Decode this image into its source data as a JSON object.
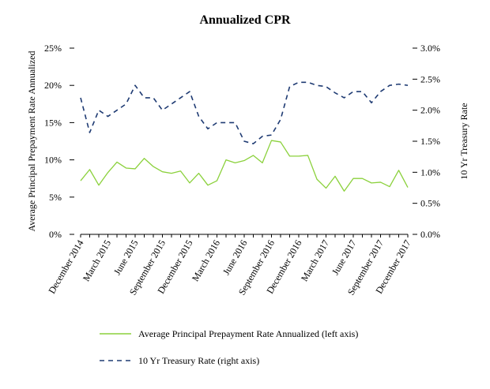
{
  "chart_data": {
    "type": "line",
    "title": "Annualized CPR",
    "ylabel_left": "Average Principal Prepayment Rate Annualized",
    "ylabel_right": "10 Yr Treasury Rate",
    "left_axis": {
      "min": 0,
      "max": 25,
      "ticks": [
        "0%",
        "5%",
        "10%",
        "15%",
        "20%",
        "25%"
      ]
    },
    "right_axis": {
      "min": 0,
      "max": 3,
      "ticks": [
        "0.0%",
        "0.5%",
        "1.0%",
        "1.5%",
        "2.0%",
        "2.5%",
        "3.0%"
      ]
    },
    "x_count": 37,
    "x_tick_labels": [
      {
        "index": 0,
        "label": "December 2014"
      },
      {
        "index": 3,
        "label": "March 2015"
      },
      {
        "index": 6,
        "label": "June 2015"
      },
      {
        "index": 9,
        "label": "September 2015"
      },
      {
        "index": 12,
        "label": "December 2015"
      },
      {
        "index": 15,
        "label": "March 2016"
      },
      {
        "index": 18,
        "label": "June 2016"
      },
      {
        "index": 21,
        "label": "September 2016"
      },
      {
        "index": 24,
        "label": "December 2016"
      },
      {
        "index": 27,
        "label": "March 2017"
      },
      {
        "index": 30,
        "label": "June 2017"
      },
      {
        "index": 33,
        "label": "September 2017"
      },
      {
        "index": 36,
        "label": "December 2017"
      }
    ],
    "series": [
      {
        "name": "Average Principal Prepayment Rate Annualized (left axis)",
        "axis": "left",
        "color": "#8bd13c",
        "style": "solid",
        "values": [
          7.2,
          8.7,
          6.6,
          8.3,
          9.7,
          8.9,
          8.8,
          10.2,
          9.1,
          8.4,
          8.2,
          8.5,
          6.9,
          8.2,
          6.6,
          7.2,
          10.0,
          9.6,
          9.9,
          10.6,
          9.6,
          12.6,
          12.4,
          10.5,
          10.5,
          10.6,
          7.4,
          6.2,
          7.8,
          5.8,
          7.5,
          7.5,
          6.9,
          7.0,
          6.4,
          8.6,
          6.3
        ]
      },
      {
        "name": "10 Yr Treasury Rate (right axis)",
        "axis": "right",
        "color": "#1f3b73",
        "style": "dashed",
        "values": [
          2.2,
          1.64,
          2.0,
          1.9,
          2.0,
          2.1,
          2.4,
          2.2,
          2.2,
          2.0,
          2.1,
          2.2,
          2.3,
          1.9,
          1.7,
          1.8,
          1.8,
          1.8,
          1.5,
          1.46,
          1.58,
          1.6,
          1.85,
          2.38,
          2.45,
          2.45,
          2.4,
          2.38,
          2.28,
          2.2,
          2.3,
          2.3,
          2.12,
          2.3,
          2.4,
          2.42,
          2.4
        ]
      }
    ],
    "legend": {
      "position": "bottom",
      "entries": [
        "Average Principal Prepayment Rate Annualized (left axis)",
        "10 Yr Treasury Rate (right axis)"
      ]
    }
  }
}
